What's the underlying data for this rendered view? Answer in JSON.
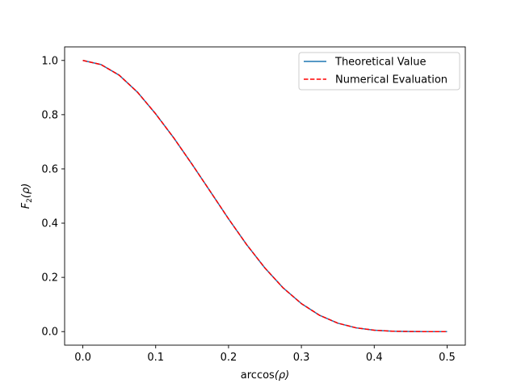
{
  "chart_data": {
    "type": "line",
    "title": "",
    "xlabel_main": "arccos",
    "xlabel_arg": "(ρ)",
    "ylabel_main": "F",
    "ylabel_sub": "2",
    "ylabel_arg": "(ρ)",
    "xlim": [
      -0.025,
      0.525
    ],
    "ylim": [
      -0.05,
      1.05
    ],
    "xticks": [
      0.0,
      0.1,
      0.2,
      0.3,
      0.4,
      0.5
    ],
    "xtick_labels": [
      "0.0",
      "0.1",
      "0.2",
      "0.3",
      "0.4",
      "0.5"
    ],
    "yticks": [
      0.0,
      0.2,
      0.4,
      0.6,
      0.8,
      1.0
    ],
    "ytick_labels": [
      "0.0",
      "0.2",
      "0.4",
      "0.6",
      "0.8",
      "1.0"
    ],
    "grid": false,
    "legend_position": "top-right",
    "x": [
      0.0,
      0.025,
      0.05,
      0.075,
      0.1,
      0.125,
      0.15,
      0.175,
      0.2,
      0.225,
      0.25,
      0.275,
      0.3,
      0.325,
      0.35,
      0.375,
      0.4,
      0.425,
      0.45,
      0.475,
      0.5
    ],
    "series": [
      {
        "name": "Theoretical Value",
        "color": "#1f77b4",
        "style": "solid",
        "values": [
          1.0,
          0.9847,
          0.9455,
          0.883,
          0.8029,
          0.7136,
          0.6167,
          0.5167,
          0.4158,
          0.3203,
          0.2343,
          0.161,
          0.1032,
          0.0601,
          0.0311,
          0.0139,
          0.0052,
          0.0015,
          0.0003,
          0.0,
          0.0
        ]
      },
      {
        "name": "Numerical Evaluation",
        "color": "#ff0000",
        "style": "dashed",
        "values": [
          1.0,
          0.9847,
          0.9455,
          0.883,
          0.8029,
          0.7136,
          0.6167,
          0.5167,
          0.4158,
          0.3203,
          0.2343,
          0.161,
          0.1032,
          0.0601,
          0.0311,
          0.0139,
          0.0052,
          0.0015,
          0.0003,
          0.0,
          0.0
        ]
      }
    ]
  }
}
